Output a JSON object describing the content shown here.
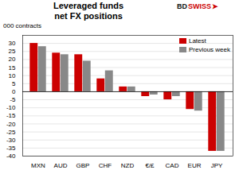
{
  "chart_data": {
    "type": "bar",
    "title": "Leveraged funds",
    "subtitle": "net FX positions",
    "ylabel": "000 contracts",
    "annotations": [
      {
        "text": "BD",
        "color": "#111111"
      },
      {
        "text": "SWISS",
        "color": "#cc0000"
      },
      {
        "text": "➤",
        "color": "#cc0000"
      }
    ],
    "categories": [
      "MXN",
      "AUD",
      "GBP",
      "CHF",
      "NZD",
      "€/£",
      "CAD",
      "EUR",
      "JPY"
    ],
    "series": [
      {
        "name": "Latest",
        "color": "#cc0000",
        "values": [
          30,
          24,
          23,
          8,
          3,
          -3,
          -5,
          -11,
          -37
        ]
      },
      {
        "name": "Previous week",
        "color": "#888888",
        "values": [
          28,
          23,
          19,
          13,
          3,
          -2,
          -3,
          -12,
          -37
        ]
      }
    ],
    "ylim": [
      -40,
      35
    ],
    "yticks": [
      -40,
      -35,
      -30,
      -25,
      -20,
      -15,
      -10,
      -5,
      0,
      5,
      10,
      15,
      20,
      25,
      30
    ],
    "grid": true,
    "legend": "upper right"
  }
}
